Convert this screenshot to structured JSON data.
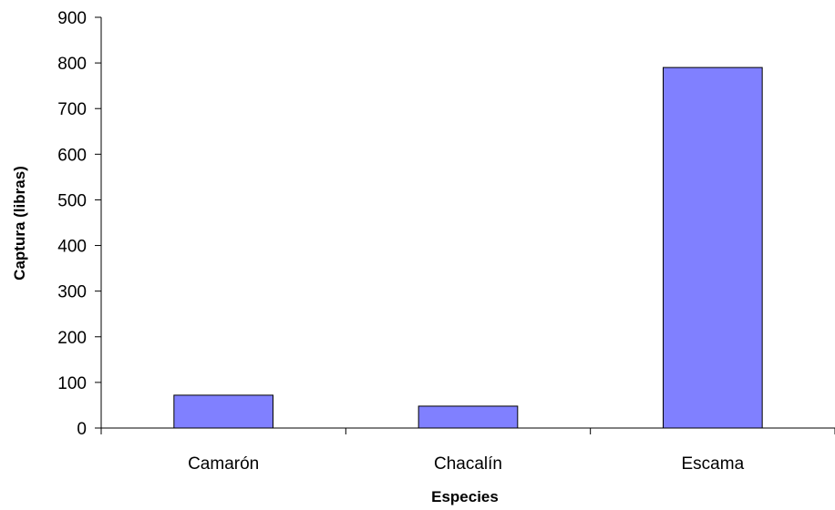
{
  "chart_data": {
    "type": "bar",
    "title": "",
    "xlabel": "Especies",
    "ylabel": "Captura (libras)",
    "categories": [
      "Camarón",
      "Chacalín",
      "Escama"
    ],
    "values": [
      72,
      48,
      790
    ],
    "ylim": [
      0,
      900
    ],
    "yticks": [
      0,
      100,
      200,
      300,
      400,
      500,
      600,
      700,
      800,
      900
    ],
    "grid": false,
    "legend": "none",
    "bar_color": "#8080FF",
    "bar_edge_color": "#000000"
  }
}
